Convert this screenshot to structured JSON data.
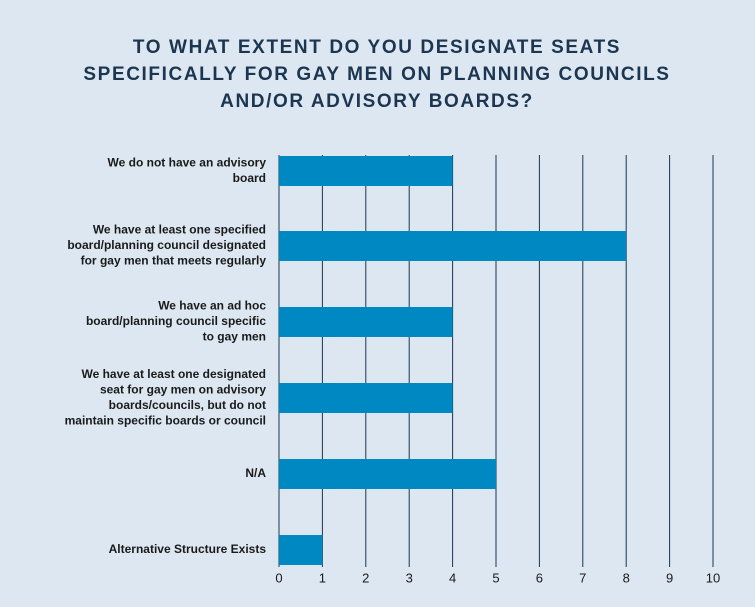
{
  "chart_data": {
    "type": "bar",
    "orientation": "horizontal",
    "title": [
      "TO WHAT EXTENT DO YOU DESIGNATE SEATS",
      "SPECIFICALLY FOR GAY MEN ON PLANNING COUNCILS",
      "AND/OR ADVISORY BOARDS?"
    ],
    "categories": [
      [
        "We do not have an advisory",
        "board"
      ],
      [
        "We have at least one specified",
        "board/planning council designated",
        "for gay men that meets regularly"
      ],
      [
        "We have an ad hoc",
        "board/planning council specific",
        "to gay men"
      ],
      [
        "We have at least one designated",
        "seat for gay men on advisory",
        "boards/councils, but do not",
        "maintain specific boards or council"
      ],
      [
        "N/A"
      ],
      [
        "Alternative Structure Exists"
      ]
    ],
    "values": [
      4,
      8,
      4,
      4,
      5,
      1
    ],
    "color": "#0088c2",
    "xlim": [
      0,
      10
    ],
    "xticks": [
      0,
      1,
      2,
      3,
      4,
      5,
      6,
      7,
      8,
      9,
      10
    ],
    "grid": true
  }
}
